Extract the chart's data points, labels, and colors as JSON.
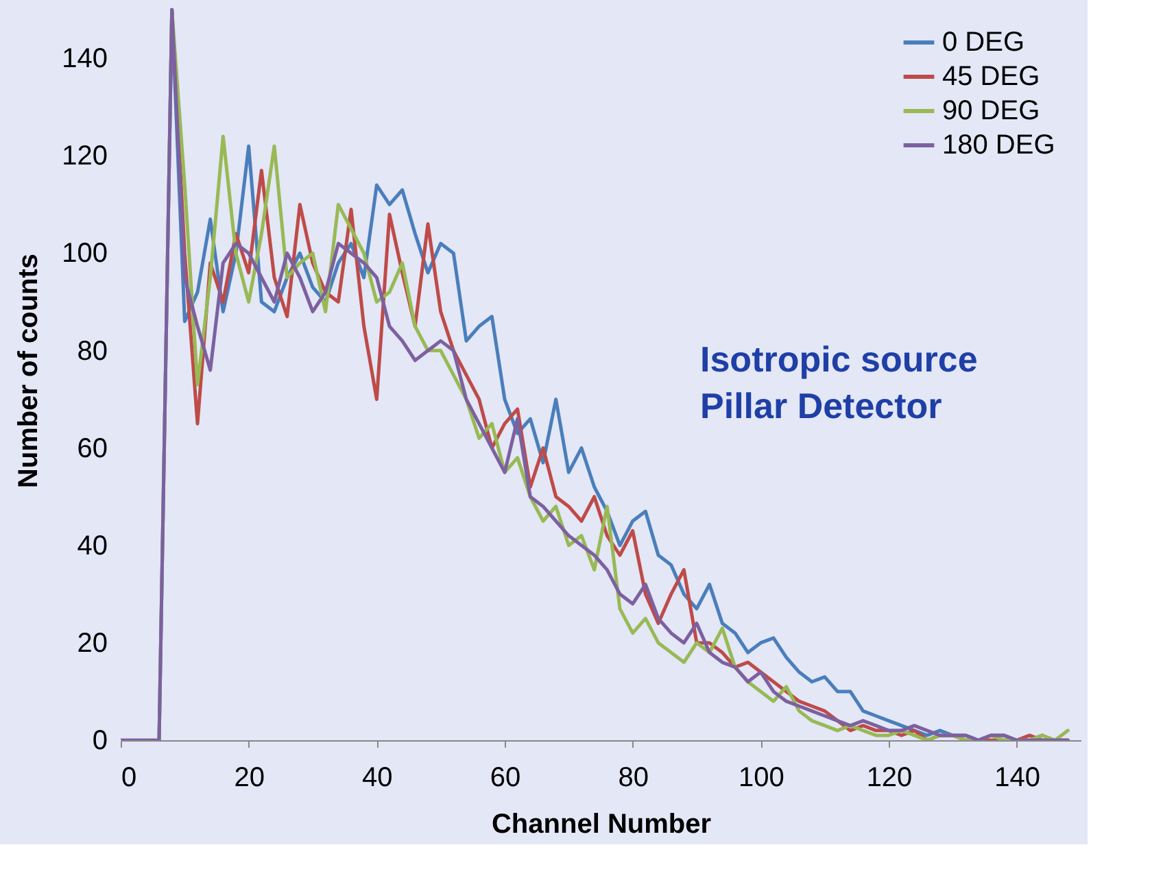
{
  "chart_data": {
    "type": "line",
    "xlabel": "Channel Number",
    "ylabel": "Number of counts",
    "x": [
      0,
      2,
      4,
      6,
      8,
      10,
      12,
      14,
      16,
      18,
      20,
      22,
      24,
      26,
      28,
      30,
      32,
      34,
      36,
      38,
      40,
      42,
      44,
      46,
      48,
      50,
      52,
      54,
      56,
      58,
      60,
      62,
      64,
      66,
      68,
      70,
      72,
      74,
      76,
      78,
      80,
      82,
      84,
      86,
      88,
      90,
      92,
      94,
      96,
      98,
      100,
      102,
      104,
      106,
      108,
      110,
      112,
      114,
      116,
      118,
      120,
      122,
      124,
      126,
      128,
      130,
      132,
      134,
      136,
      138,
      140,
      142,
      144,
      146,
      148
    ],
    "series": [
      {
        "name": "0 DEG",
        "color": "#4a7ebb",
        "values": [
          null,
          null,
          null,
          0,
          150,
          86,
          92,
          107,
          88,
          100,
          122,
          90,
          88,
          95,
          100,
          93,
          90,
          98,
          102,
          95,
          114,
          110,
          113,
          104,
          96,
          102,
          100,
          82,
          85,
          87,
          70,
          63,
          66,
          57,
          70,
          55,
          60,
          52,
          47,
          40,
          45,
          47,
          38,
          36,
          30,
          27,
          32,
          24,
          22,
          18,
          20,
          21,
          17,
          14,
          12,
          13,
          10,
          10,
          6,
          5,
          4,
          3,
          2,
          1,
          2,
          1,
          1,
          0,
          1,
          1,
          0,
          0,
          1,
          null,
          null
        ]
      },
      {
        "name": "45 DEG",
        "color": "#be4b48",
        "values": [
          null,
          null,
          null,
          null,
          150,
          100,
          65,
          98,
          90,
          104,
          96,
          117,
          95,
          87,
          110,
          98,
          92,
          90,
          109,
          85,
          70,
          108,
          96,
          85,
          106,
          88,
          80,
          75,
          70,
          60,
          65,
          68,
          52,
          60,
          50,
          48,
          45,
          50,
          42,
          38,
          43,
          30,
          24,
          30,
          35,
          20,
          20,
          18,
          15,
          16,
          14,
          12,
          10,
          8,
          7,
          6,
          4,
          2,
          3,
          2,
          2,
          1,
          2,
          0,
          1,
          1,
          0,
          0,
          0,
          0,
          0,
          1,
          0,
          0,
          0
        ]
      },
      {
        "name": "90 DEG",
        "color": "#98b954",
        "values": [
          null,
          null,
          null,
          0,
          150,
          114,
          73,
          95,
          124,
          100,
          90,
          104,
          122,
          95,
          98,
          100,
          88,
          110,
          105,
          100,
          90,
          92,
          98,
          85,
          80,
          80,
          75,
          70,
          62,
          65,
          55,
          58,
          50,
          45,
          48,
          40,
          42,
          35,
          48,
          27,
          22,
          25,
          20,
          18,
          16,
          20,
          18,
          23,
          15,
          12,
          10,
          8,
          11,
          6,
          4,
          3,
          2,
          3,
          2,
          1,
          1,
          2,
          1,
          0,
          1,
          1,
          0,
          0,
          1,
          0,
          0,
          0,
          1,
          0,
          2
        ]
      },
      {
        "name": "180 DEG",
        "color": "#7d60a0",
        "values": [
          0,
          0,
          0,
          0,
          150,
          95,
          85,
          76,
          98,
          102,
          100,
          95,
          90,
          100,
          95,
          88,
          92,
          102,
          100,
          98,
          95,
          85,
          82,
          78,
          80,
          82,
          80,
          70,
          65,
          60,
          55,
          66,
          50,
          48,
          45,
          42,
          40,
          38,
          35,
          30,
          28,
          32,
          25,
          22,
          20,
          24,
          18,
          16,
          15,
          12,
          14,
          10,
          8,
          7,
          6,
          5,
          4,
          3,
          4,
          3,
          2,
          2,
          3,
          2,
          1,
          1,
          1,
          0,
          1,
          1,
          0,
          0,
          0,
          0,
          0
        ]
      }
    ],
    "xlim": [
      0,
      150
    ],
    "ylim": [
      0,
      152
    ],
    "xticks": [
      0,
      20,
      40,
      60,
      80,
      100,
      120,
      140
    ],
    "yticks": [
      0,
      20,
      40,
      60,
      80,
      100,
      120,
      140
    ],
    "grid": false,
    "legend": "top right",
    "marker": "none",
    "line_style": "solid",
    "annotations": [
      "Isotropic source",
      "Pillar Detector"
    ]
  }
}
